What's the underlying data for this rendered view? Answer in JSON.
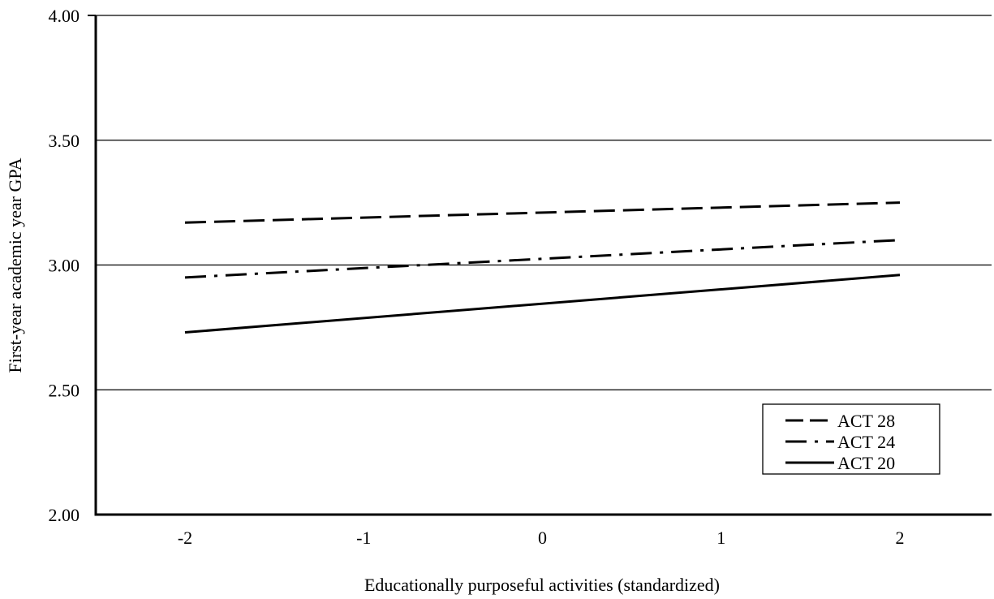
{
  "chart_data": {
    "type": "line",
    "title": "",
    "xlabel": "Educationally purposeful activities (standardized)",
    "ylabel": "First-year academic year GPA",
    "categories": [
      "-2",
      "-1",
      "0",
      "1",
      "2"
    ],
    "x": [
      -2,
      2
    ],
    "ylim": [
      2.0,
      4.0
    ],
    "y_ticks": [
      "2.00",
      "2.50",
      "3.00",
      "3.50",
      "4.00"
    ],
    "grid": "horizontal",
    "legend_position": "bottom-right",
    "series": [
      {
        "name": "ACT 28",
        "style": "dashed",
        "values": [
          3.17,
          3.25
        ]
      },
      {
        "name": "ACT 24",
        "style": "dash-dot",
        "values": [
          2.95,
          3.1
        ]
      },
      {
        "name": "ACT 20",
        "style": "solid",
        "values": [
          2.73,
          2.96
        ]
      }
    ]
  }
}
